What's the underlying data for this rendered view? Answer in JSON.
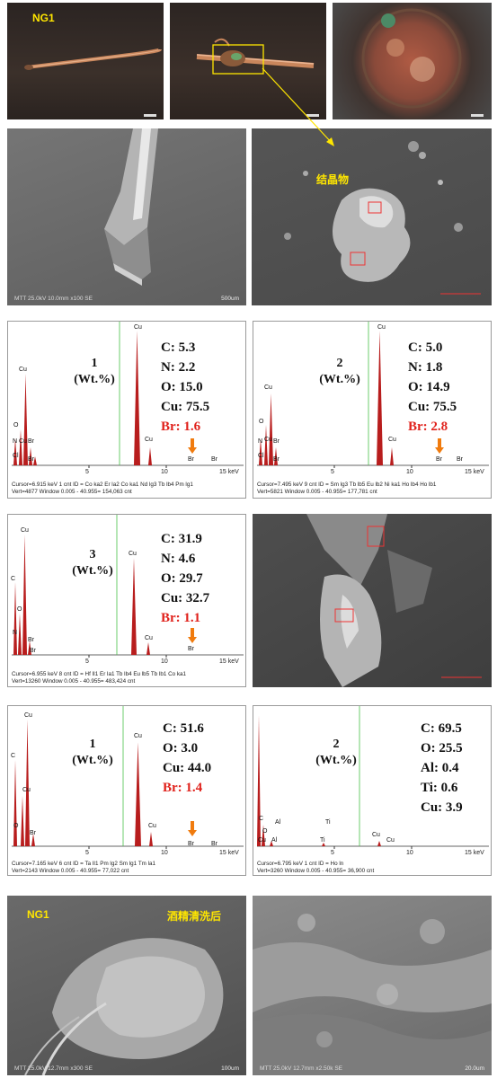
{
  "row1": {
    "left_label": "NG1"
  },
  "sem1": {
    "caption": "MTT 25.0kV 10.0mm x100 SE",
    "scale": "500um"
  },
  "sem2": {
    "label": "结晶物"
  },
  "spectra": [
    {
      "sample": "1",
      "unit": "(Wt.%)",
      "elements": [
        {
          "text": "C: 5.3",
          "highlight": false
        },
        {
          "text": "N: 2.2",
          "highlight": false
        },
        {
          "text": "O: 15.0",
          "highlight": false
        },
        {
          "text": "Cu: 75.5",
          "highlight": false
        },
        {
          "text": "Br: 1.6",
          "highlight": true
        }
      ],
      "peak_labels": [
        "Cu",
        "Cu",
        "O",
        "N",
        "Cu",
        "Br",
        "Cl",
        "Br",
        "Br",
        "Br",
        "Cu"
      ],
      "axis": [
        "5",
        "10",
        "15 keV"
      ],
      "footer1": "Cursor=6.915 keV   1 cnt  ID = Co ka2  Er la2  Co ka1  Nd lg3  Tb lb4  Pm lg1",
      "footer2": "Vert=4877                  Window 0.005 - 40.955=   154,063 cnt"
    },
    {
      "sample": "2",
      "unit": "(Wt.%)",
      "elements": [
        {
          "text": "C: 5.0",
          "highlight": false
        },
        {
          "text": "N: 1.8",
          "highlight": false
        },
        {
          "text": "O: 14.9",
          "highlight": false
        },
        {
          "text": "Cu: 75.5",
          "highlight": false
        },
        {
          "text": "Br: 2.8",
          "highlight": true
        }
      ],
      "peak_labels": [
        "Cu",
        "Cu",
        "O",
        "N",
        "Cu",
        "Br",
        "Cl",
        "Br",
        "Br",
        "Br",
        "Cu"
      ],
      "axis": [
        "5",
        "10",
        "15 keV"
      ],
      "footer1": "Cursor=7.495 keV   9 cnt  ID = Sm lg3  Tb lb5  Eu lb2  Ni ka1  Ho lb4  Ho lb1",
      "footer2": "Vert=5821                  Window 0.005 - 40.955=   177,781 cnt"
    },
    {
      "sample": "3",
      "unit": "(Wt.%)",
      "elements": [
        {
          "text": "C: 31.9",
          "highlight": false
        },
        {
          "text": "N: 4.6",
          "highlight": false
        },
        {
          "text": "O: 29.7",
          "highlight": false
        },
        {
          "text": "Cu: 32.7",
          "highlight": false
        },
        {
          "text": "Br: 1.1",
          "highlight": true
        }
      ],
      "peak_labels": [
        "Cu",
        "C",
        "O",
        "N",
        "Cu",
        "Br",
        "Br",
        "Cu",
        "Br"
      ],
      "axis": [
        "5",
        "10",
        "15 keV"
      ],
      "footer1": "Cursor=6.955 keV   8 cnt  ID = Hf lI1  Er la1  Tb lb4  Eu lb5  Tb lb1  Co ka1",
      "footer2": "Vert=13260                 Window 0.005 - 40.955=   483,424 cnt"
    },
    {
      "sample": "1",
      "unit": "(Wt.%)",
      "elements": [
        {
          "text": "C: 51.6",
          "highlight": false
        },
        {
          "text": "O: 3.0",
          "highlight": false
        },
        {
          "text": "Cu: 44.0",
          "highlight": false
        },
        {
          "text": "Br: 1.4",
          "highlight": true
        }
      ],
      "peak_labels": [
        "Cu",
        "C",
        "Cu",
        "O",
        "Cu",
        "Br",
        "Br",
        "Br",
        "Cu"
      ],
      "axis": [
        "5",
        "10",
        "15 keV"
      ],
      "footer1": "Cursor=7.165 keV   6 cnt  ID = Ta lI1  Pm lg2  Sm lg1  Tm la1",
      "footer2": "Vert=2143                  Window 0.005 - 40.955=   77,022 cnt"
    },
    {
      "sample": "2",
      "unit": "(Wt.%)",
      "elements": [
        {
          "text": "C: 69.5",
          "highlight": false
        },
        {
          "text": "O: 25.5",
          "highlight": false
        },
        {
          "text": "Al: 0.4",
          "highlight": false
        },
        {
          "text": "Ti: 0.6",
          "highlight": false
        },
        {
          "text": "Cu: 3.9",
          "highlight": false
        }
      ],
      "peak_labels": [
        "C",
        "O",
        "Al",
        "Ti",
        "Cu",
        "Al",
        "Ti",
        "Cu",
        "Cu"
      ],
      "axis": [
        "5",
        "10",
        "15 keV"
      ],
      "footer1": "Cursor=6.795 keV   1 cnt  ID = Ho ln",
      "footer2": "Vert=3260                  Window 0.005 - 40.955=   36,900 cnt"
    }
  ],
  "bottom": {
    "left_label": "NG1",
    "right_label": "酒精清洗后",
    "caption_left": "MTT 25.0kV 12.7mm x300 SE",
    "scale_left": "100um",
    "caption_right": "MTT 25.0kV 12.7mm x2.50k SE",
    "scale_right": "20.0um"
  },
  "colors": {
    "peak": "#b81d1d",
    "highlight": "#e0211b",
    "arrow": "#f07b0e",
    "label": "#ffe600",
    "marker": "#3cc63c"
  }
}
